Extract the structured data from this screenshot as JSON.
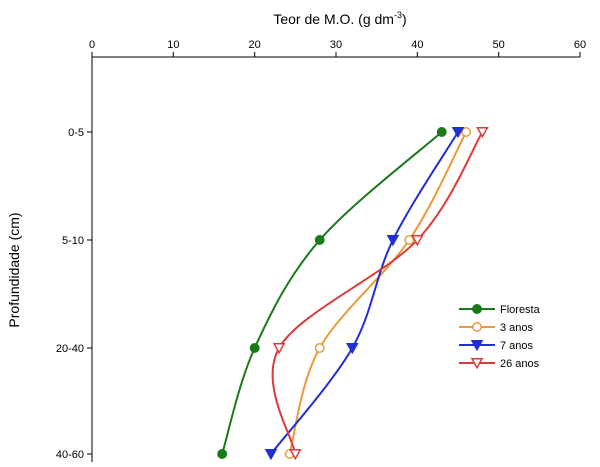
{
  "chart_data": {
    "type": "line",
    "orientation": "profile",
    "x_axis": {
      "label": "Teor de M.O. (g dm",
      "label_superscript": "-3",
      "label_suffix": ")",
      "position": "top",
      "min": 0,
      "max": 60,
      "ticks": [
        0,
        10,
        20,
        30,
        40,
        50,
        60
      ]
    },
    "y_axis": {
      "label": "Profundidade (cm)",
      "categories": [
        "0-5",
        "5-10",
        "20-40",
        "40-60"
      ]
    },
    "legend_position": "right",
    "series": [
      {
        "name": "Floresta",
        "color": "#1a7a1a",
        "marker": "filled-circle",
        "values": [
          43,
          28,
          20,
          16
        ]
      },
      {
        "name": "3 anos",
        "color": "#ea9a3a",
        "marker": "open-circle",
        "values": [
          46,
          39,
          28,
          24.3
        ]
      },
      {
        "name": "7 anos",
        "color": "#1f2fd0",
        "marker": "filled-triangle-down",
        "values": [
          45,
          37,
          32,
          22
        ]
      },
      {
        "name": "26 anos",
        "color": "#d93a3a",
        "marker": "open-triangle-down",
        "values": [
          48,
          40,
          23,
          25
        ]
      }
    ]
  }
}
